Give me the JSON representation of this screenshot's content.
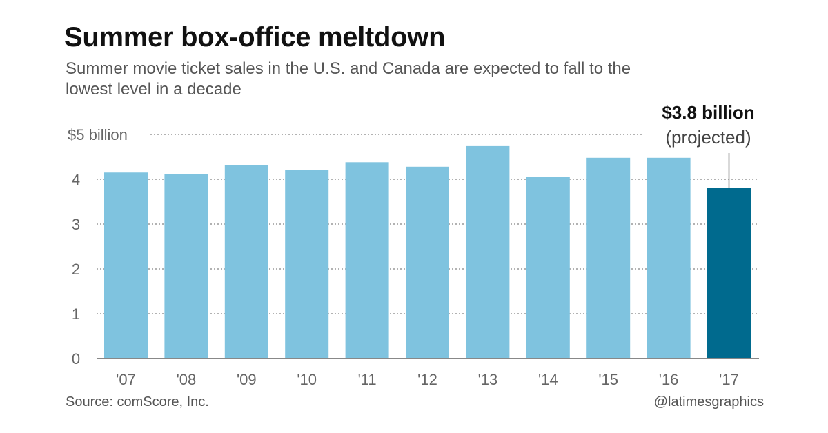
{
  "chart_data": {
    "type": "bar",
    "title": "Summer box-office meltdown",
    "subtitle": "Summer movie ticket sales in the U.S. and Canada are expected to fall to the lowest level in a decade",
    "categories": [
      "'07",
      "'08",
      "'09",
      "'10",
      "'11",
      "'12",
      "'13",
      "'14",
      "'15",
      "'16",
      "'17"
    ],
    "values": [
      4.15,
      4.12,
      4.32,
      4.2,
      4.38,
      4.28,
      4.74,
      4.05,
      4.48,
      4.48,
      3.8
    ],
    "yticks": [
      0,
      1,
      2,
      3,
      4,
      5
    ],
    "ytick_labels": [
      "0",
      "1",
      "2",
      "3",
      "4",
      "$5 billion"
    ],
    "ylim": [
      0,
      5
    ],
    "grid": true,
    "colors": {
      "bar": "#7fc3df",
      "highlight": "#006a8e",
      "grid": "#999999"
    },
    "highlight_index": 10,
    "annotation": {
      "value_label": "$3.8 billion",
      "note": "(projected)"
    },
    "source": "Source: comScore, Inc.",
    "credit": "@latimesgraphics"
  }
}
